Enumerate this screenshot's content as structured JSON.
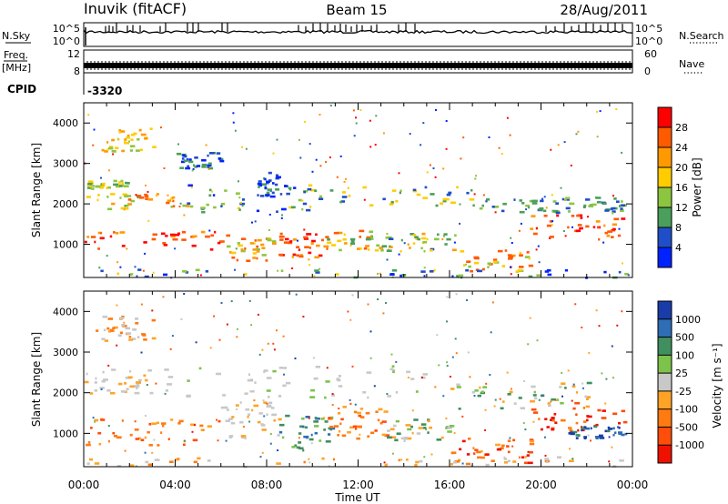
{
  "header": {
    "station": "Inuvik (fitACF)",
    "beam": "Beam 15",
    "date": "28/Aug/2011"
  },
  "top_panels": {
    "nsky_label": "N.Sky",
    "nsky_ticks": [
      "10^5",
      "10^0"
    ],
    "nsearch_label": "N.Search",
    "nsearch_ticks": [
      "10^5",
      "10^0"
    ],
    "freq_label": "Freq.",
    "freq_unit": "[MHz]",
    "freq_ticks": [
      "12",
      "8"
    ],
    "nave_label": "Nave",
    "nave_ticks": [
      "60",
      "0"
    ],
    "cpid_label": "CPID",
    "cpid_value": "-3320"
  },
  "chart_data": [
    {
      "type": "heatmap",
      "name": "power-panel",
      "ylabel": "Slant Range [km]",
      "yticks": [
        1000,
        2000,
        3000,
        4000
      ],
      "ylim": [
        180,
        4500
      ],
      "xlim": [
        0,
        24
      ],
      "colorbar": {
        "label": "Power [dB]",
        "ticks": [
          "28",
          "24",
          "20",
          "16",
          "12",
          "8",
          "4"
        ],
        "colors": [
          "#ff0000",
          "#ff5a00",
          "#ff9900",
          "#ffcc00",
          "#8cc63f",
          "#4a9f5a",
          "#1f4fc8",
          "#0022ff"
        ]
      }
    },
    {
      "type": "heatmap",
      "name": "velocity-panel",
      "ylabel": "Slant Range [km]",
      "yticks": [
        1000,
        2000,
        3000,
        4000
      ],
      "ylim": [
        180,
        4500
      ],
      "xlim": [
        0,
        24
      ],
      "colorbar": {
        "label": "Velocity [m s⁻¹]",
        "ticks": [
          "1000",
          "500",
          "100",
          "25",
          "-25",
          "-100",
          "-500",
          "-1000"
        ],
        "colors": [
          "#1a3ca8",
          "#2f6db5",
          "#3f8f5f",
          "#7cc24b",
          "#c8c8c8",
          "#ffa326",
          "#ff7a10",
          "#ff4d0a",
          "#ee1100"
        ]
      }
    }
  ],
  "xaxis": {
    "label": "Time UT",
    "ticks": [
      "00:00",
      "04:00",
      "08:00",
      "12:00",
      "16:00",
      "20:00",
      "00:00"
    ]
  }
}
